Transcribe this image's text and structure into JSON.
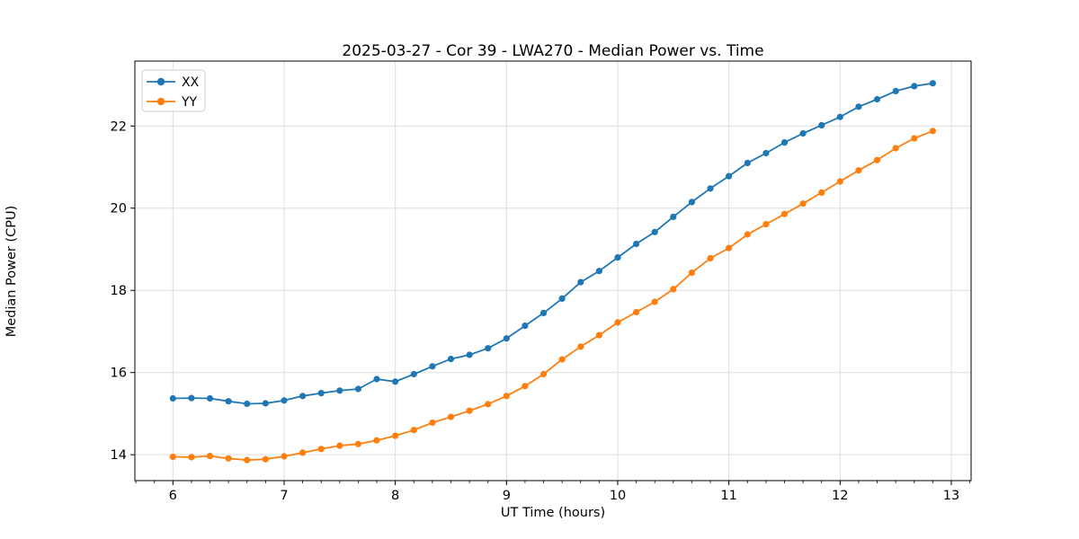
{
  "figure": {
    "background": "#ffffff",
    "spine_color": "#000000",
    "grid_color": "#dedede",
    "tick_color": "#000000",
    "legend_border_color": "#cccccc"
  },
  "chart_data": {
    "type": "line",
    "title": "2025-03-27 - Cor 39 - LWA270 - Median Power vs. Time",
    "xlabel": "UT Time (hours)",
    "ylabel": "Median Power (CPU)",
    "xlim": [
      5.658,
      13.178
    ],
    "ylim": [
      13.37,
      23.58
    ],
    "x_ticks": [
      6,
      7,
      8,
      9,
      10,
      11,
      12,
      13
    ],
    "y_ticks": [
      14,
      16,
      18,
      20,
      22
    ],
    "x_minor_tick_step": 0.166667,
    "grid": true,
    "legend_position": "upper left",
    "marker": "circle",
    "x": [
      6.0,
      6.1667,
      6.3333,
      6.5,
      6.6667,
      6.8333,
      7.0,
      7.1667,
      7.3333,
      7.5,
      7.6667,
      7.8333,
      8.0,
      8.1667,
      8.3333,
      8.5,
      8.6667,
      8.8333,
      9.0,
      9.1667,
      9.3333,
      9.5,
      9.6667,
      9.8333,
      10.0,
      10.1667,
      10.3333,
      10.5,
      10.6667,
      10.8333,
      11.0,
      11.1667,
      11.3333,
      11.5,
      11.6667,
      11.8333,
      12.0,
      12.1667,
      12.3333,
      12.5,
      12.6667,
      12.8333
    ],
    "series": [
      {
        "name": "XX",
        "color": "#1f77b4",
        "values": [
          15.37,
          15.38,
          15.37,
          15.3,
          15.24,
          15.25,
          15.32,
          15.43,
          15.5,
          15.56,
          15.6,
          15.84,
          15.78,
          15.96,
          16.15,
          16.33,
          16.43,
          16.59,
          16.83,
          17.14,
          17.45,
          17.8,
          18.2,
          18.47,
          18.8,
          19.13,
          19.42,
          19.79,
          20.15,
          20.48,
          20.78,
          21.1,
          21.34,
          21.6,
          21.82,
          22.02,
          22.22,
          22.47,
          22.65,
          22.85,
          22.97,
          23.04
        ]
      },
      {
        "name": "YY",
        "color": "#ff7f0e",
        "values": [
          13.95,
          13.94,
          13.97,
          13.91,
          13.87,
          13.89,
          13.96,
          14.05,
          14.14,
          14.22,
          14.26,
          14.35,
          14.46,
          14.6,
          14.78,
          14.92,
          15.07,
          15.23,
          15.43,
          15.67,
          15.96,
          16.32,
          16.63,
          16.91,
          17.22,
          17.47,
          17.72,
          18.03,
          18.43,
          18.78,
          19.03,
          19.36,
          19.61,
          19.86,
          20.11,
          20.38,
          20.65,
          20.92,
          21.17,
          21.46,
          21.7,
          21.88
        ]
      }
    ]
  }
}
